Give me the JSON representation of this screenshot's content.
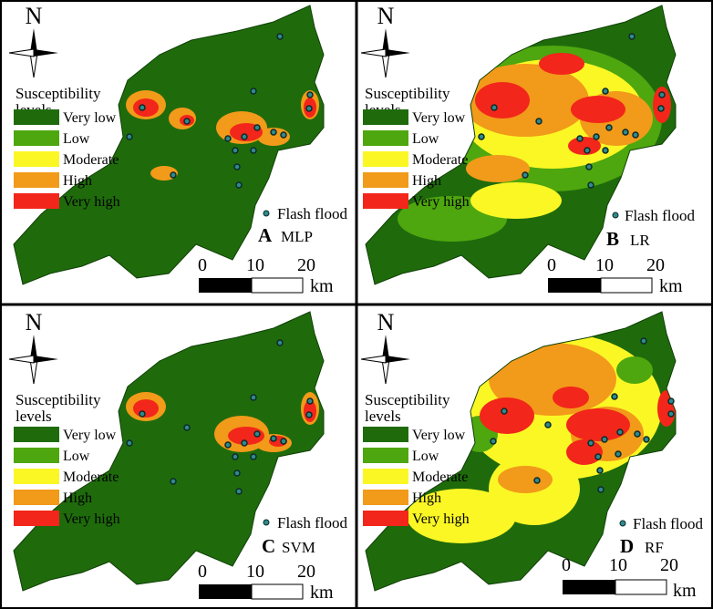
{
  "north_label": "N",
  "legend": {
    "title_line1": "Susceptibility",
    "title_line2": "levels",
    "items": [
      {
        "label": "Very low",
        "color": "#1f6b0c"
      },
      {
        "label": "Low",
        "color": "#4ea70e"
      },
      {
        "label": "Moderate",
        "color": "#fbf725"
      },
      {
        "label": "High",
        "color": "#f29a19"
      },
      {
        "label": "Very high",
        "color": "#f2261a"
      }
    ],
    "marker_label": "Flash flood",
    "marker_color": "#2f8a8c"
  },
  "scale": {
    "ticks": [
      "0",
      "10",
      "20"
    ],
    "unit": "km"
  },
  "panels": [
    {
      "letter": "A",
      "model": "MLP"
    },
    {
      "letter": "B",
      "model": "LR"
    },
    {
      "letter": "C",
      "model": "SVM"
    },
    {
      "letter": "D",
      "model": "RF"
    }
  ]
}
